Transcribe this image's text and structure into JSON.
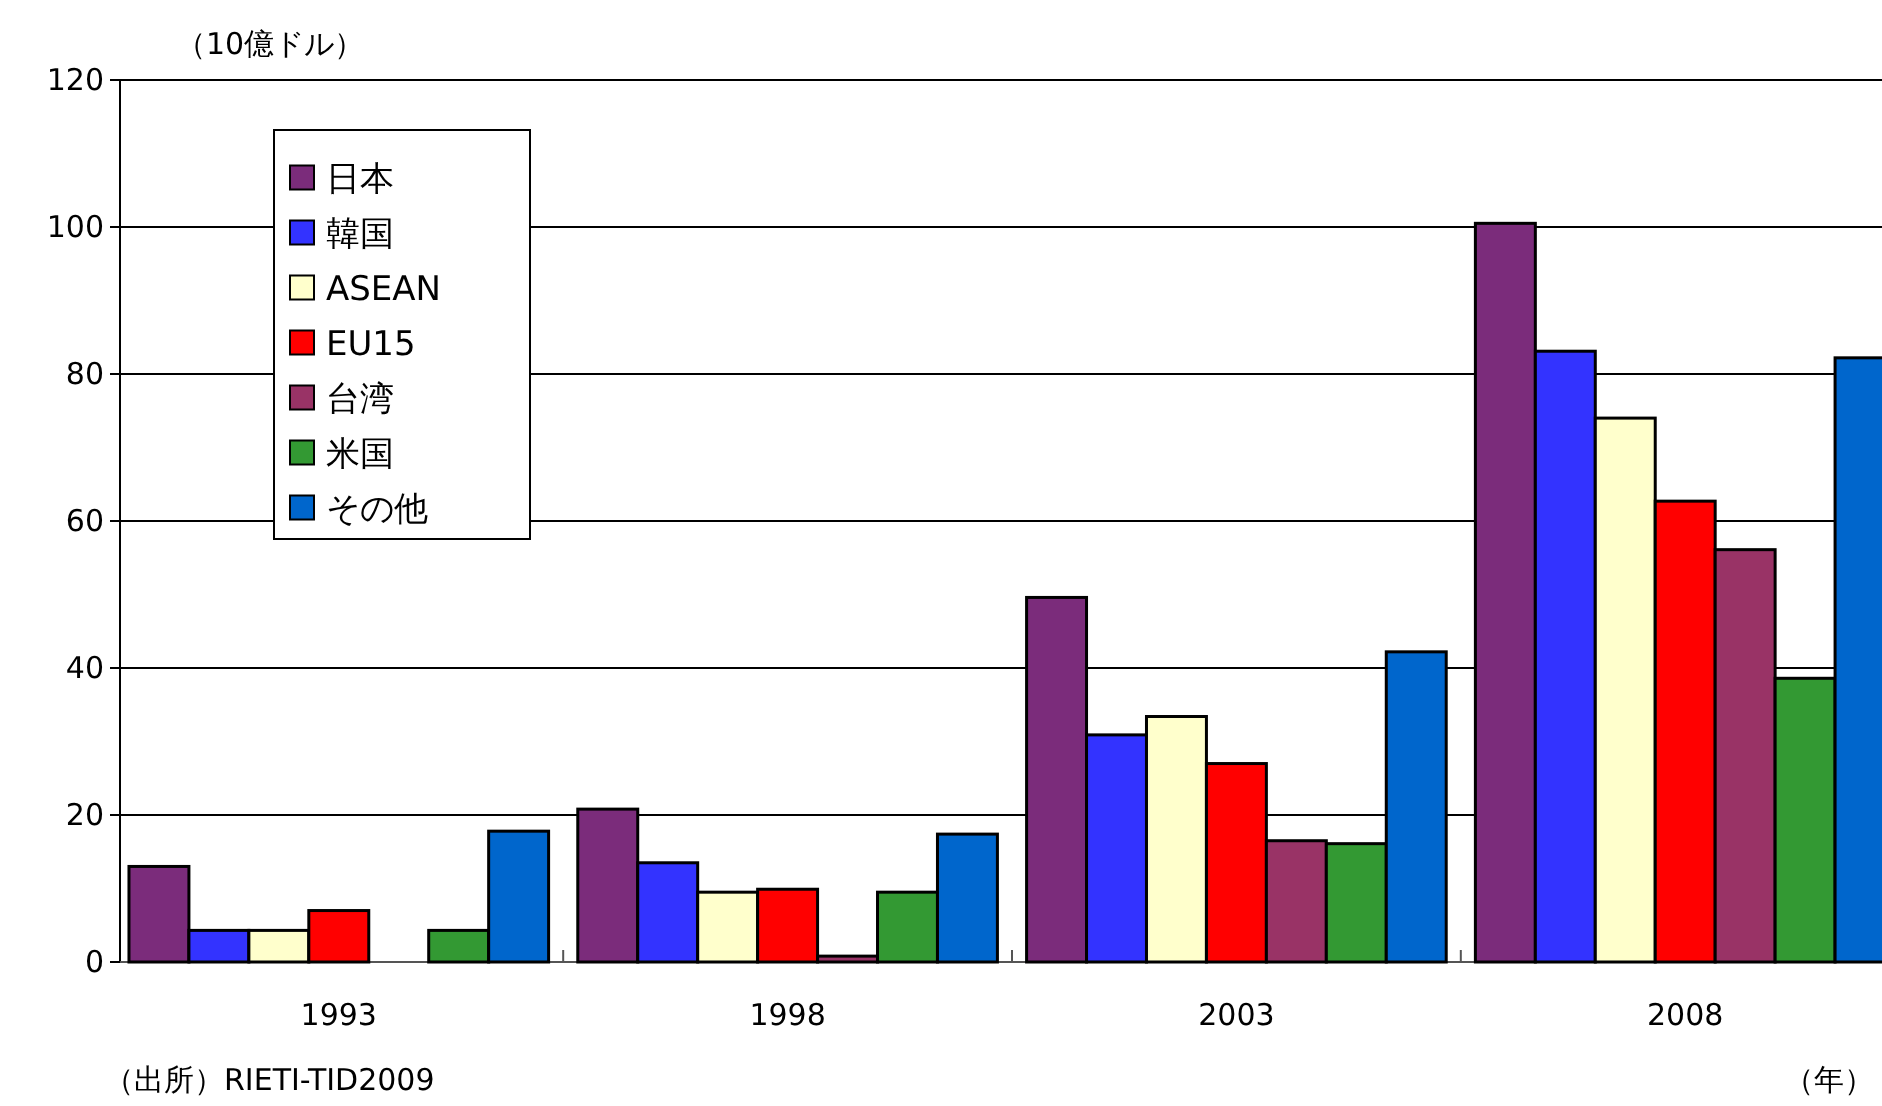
{
  "chart_data": {
    "type": "bar",
    "ylabel": "（10億ドル）",
    "xlabel": "（年）",
    "annotations": [
      "（出所）RIETI-TID2009"
    ],
    "categories": [
      "1993",
      "1998",
      "2003",
      "2008"
    ],
    "series": [
      {
        "name": "日本",
        "color": "#7b2c7b",
        "values": [
          13,
          20.8,
          49.6,
          100.5
        ]
      },
      {
        "name": "韓国",
        "color": "#3333ff",
        "values": [
          4.3,
          13.5,
          30.9,
          83.1
        ]
      },
      {
        "name": "ASEAN",
        "color": "#ffffcc",
        "values": [
          4.3,
          9.5,
          33.4,
          74
        ]
      },
      {
        "name": "EU15",
        "color": "#ff0000",
        "values": [
          7,
          9.9,
          27,
          62.7
        ]
      },
      {
        "name": "台湾",
        "color": "#993366",
        "values": [
          null,
          0.8,
          16.5,
          56.1
        ]
      },
      {
        "name": "米国",
        "color": "#339933",
        "values": [
          4.3,
          9.5,
          16.1,
          38.6
        ]
      },
      {
        "name": "その他",
        "color": "#0066cc",
        "values": [
          17.8,
          17.4,
          42.2,
          82.2
        ]
      }
    ],
    "ylim": [
      0,
      120
    ],
    "yticks": [
      0,
      20,
      40,
      60,
      80,
      100,
      120
    ],
    "grid": "y",
    "legend": "top left"
  }
}
